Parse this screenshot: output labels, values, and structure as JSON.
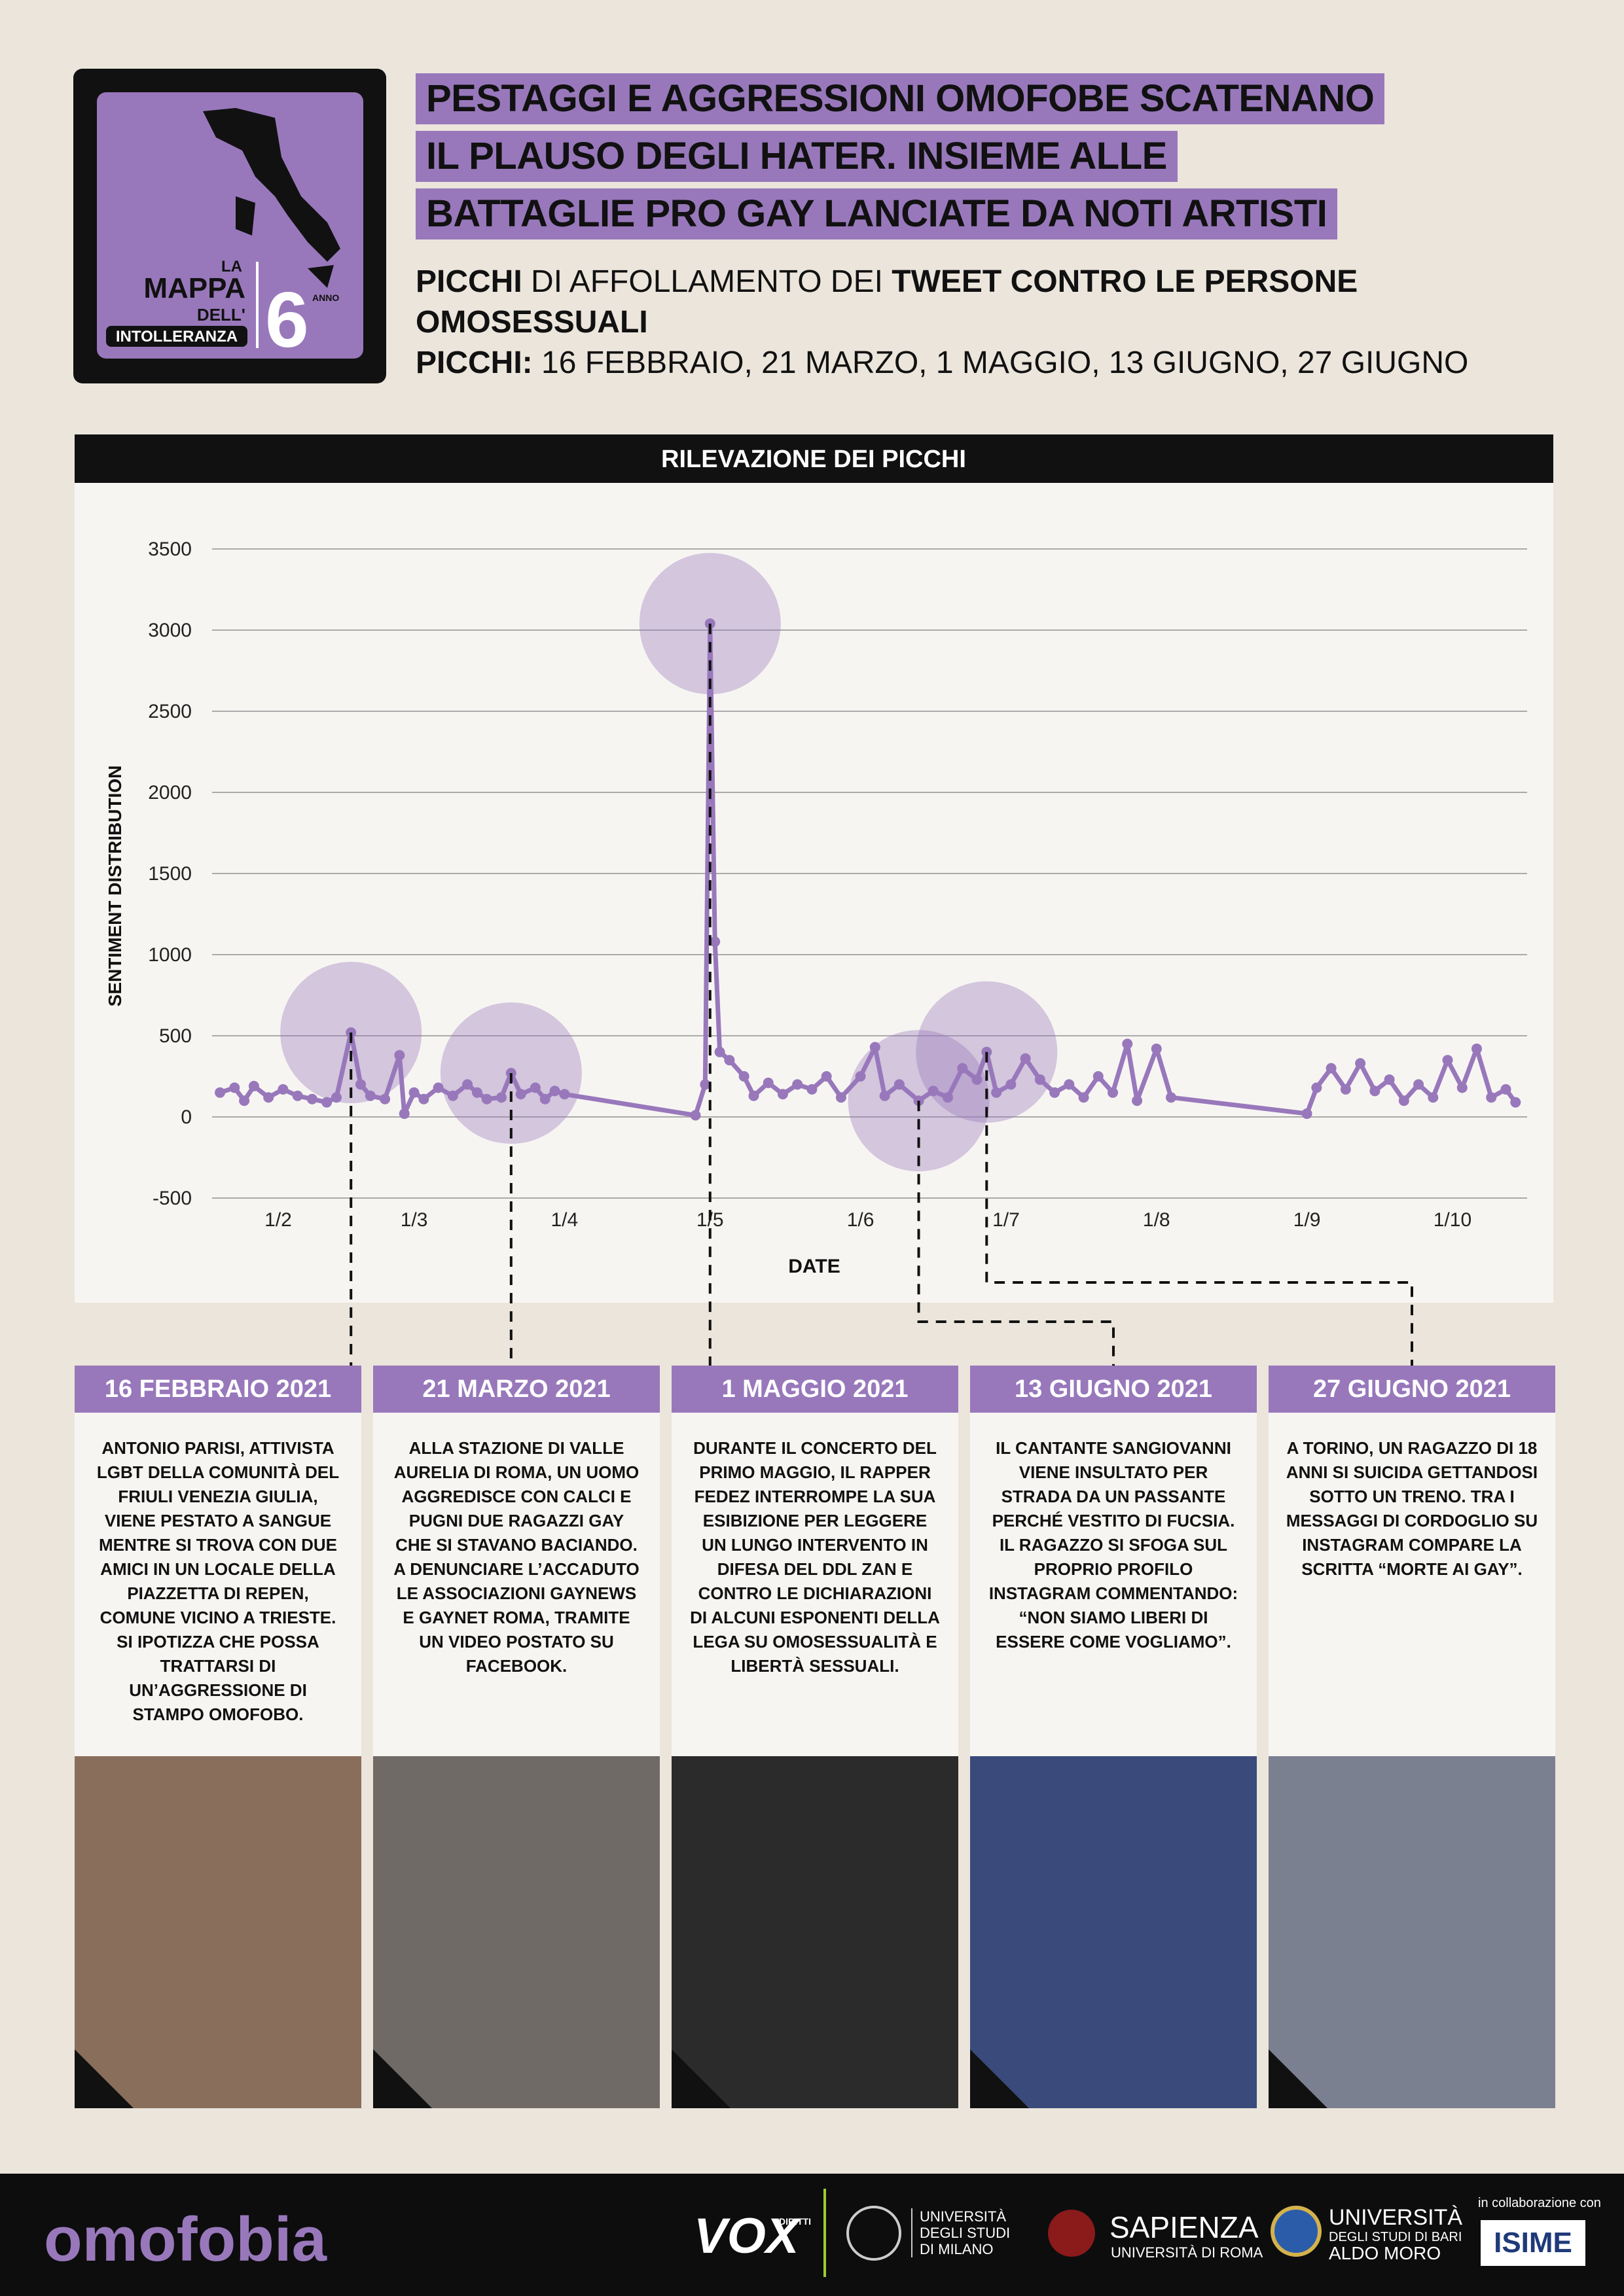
{
  "header": {
    "logo": {
      "line1": "LA",
      "line2": "MAPPA",
      "line3": "DELL'",
      "line4": "INTOLLERANZA",
      "edition": "6",
      "edition_label": "ANNO"
    },
    "title_lines": [
      "PESTAGGI E AGGRESSIONI OMOFOBE SCATENANO",
      "IL PLAUSO DEGLI HATER. INSIEME ALLE",
      "BATTAGLIE PRO GAY LANCIATE DA NOTI ARTISTI"
    ],
    "subtitle": [
      [
        {
          "text": "PICCHI",
          "bold": true
        },
        {
          "text": "DI AFFOLLAMENTO DEI",
          "bold": false
        },
        {
          "text": "TWEET CONTRO LE PERSONE OMOSESSUALI",
          "bold": true
        }
      ],
      [
        {
          "text": "PICCHI:",
          "bold": true
        },
        {
          "text": "16 FEBBRAIO, 21 MARZO, 1 MAGGIO, 13 GIUGNO, 27 GIUGNO",
          "bold": false
        }
      ]
    ]
  },
  "chart_data": {
    "type": "line",
    "title": "RILEVAZIONE DEI PICCHI",
    "xlabel": "DATE",
    "ylabel": "SENTIMENT DISTRIBUTION",
    "grid": true,
    "color": "#9878bb",
    "x": [
      "20/1",
      "23/1",
      "25/1",
      "27/1",
      "30/1",
      "2/2",
      "5/2",
      "8/2",
      "11/2",
      "13/2",
      "16/2",
      "18/2",
      "20/2",
      "23/2",
      "26/2",
      "27/2",
      "1/3",
      "3/3",
      "6/3",
      "9/3",
      "12/3",
      "14/3",
      "16/3",
      "19/3",
      "21/3",
      "23/3",
      "26/3",
      "28/3",
      "30/3",
      "1/4",
      "28/4",
      "30/4",
      "1/5",
      "2/5",
      "3/5",
      "5/5",
      "8/5",
      "10/5",
      "13/5",
      "16/5",
      "19/5",
      "22/5",
      "25/5",
      "28/5",
      "1/6",
      "4/6",
      "6/6",
      "9/6",
      "13/6",
      "16/6",
      "19/6",
      "22/6",
      "25/6",
      "27/6",
      "29/6",
      "2/7",
      "5/7",
      "8/7",
      "11/7",
      "14/7",
      "17/7",
      "20/7",
      "23/7",
      "26/7",
      "28/7",
      "1/8",
      "4/8",
      "1/9",
      "3/9",
      "6/9",
      "9/9",
      "12/9",
      "15/9",
      "18/9",
      "21/9",
      "24/9",
      "27/9",
      "30/9",
      "3/10",
      "6/10",
      "9/10",
      "12/10",
      "14/10"
    ],
    "series": [
      {
        "name": "SENTIMENT DISTRIBUTION",
        "color": "#9878bb",
        "values": [
          150,
          180,
          100,
          190,
          120,
          170,
          130,
          110,
          90,
          120,
          520,
          200,
          130,
          110,
          380,
          20,
          150,
          110,
          180,
          130,
          200,
          150,
          110,
          120,
          270,
          140,
          180,
          110,
          160,
          140,
          10,
          200,
          3040,
          1080,
          400,
          350,
          250,
          130,
          210,
          140,
          200,
          170,
          250,
          120,
          250,
          430,
          130,
          200,
          100,
          160,
          120,
          300,
          230,
          400,
          150,
          200,
          360,
          230,
          150,
          200,
          120,
          250,
          150,
          450,
          100,
          420,
          120,
          20,
          180,
          300,
          170,
          330,
          160,
          230,
          100,
          200,
          120,
          350,
          180,
          420,
          120,
          170,
          90
        ]
      }
    ],
    "highlight_x": [
      "16/2",
      "21/3",
      "1/5",
      "13/6",
      "27/6"
    ],
    "ylim": [
      -500,
      3500
    ],
    "yticks": [
      -500,
      0,
      500,
      1000,
      1500,
      2000,
      2500,
      3000,
      3500
    ],
    "xticks": [
      "1/2",
      "1/3",
      "1/4",
      "1/5",
      "1/6",
      "1/7",
      "1/8",
      "1/9",
      "1/10"
    ]
  },
  "events": [
    {
      "date": "16 FEBBRAIO 2021",
      "text": "ANTONIO PARISI, ATTIVISTA LGBT DELLA COMUNITÀ DEL FRIULI VENEZIA GIULIA, VIENE PESTATO A SANGUE MENTRE SI TROVA CON DUE AMICI IN UN LOCALE DELLA PIAZZETTA DI REPEN, COMUNE VICINO A TRIESTE. SI IPOTIZZA CHE POSSA TRATTARSI DI UN’AGGRESSIONE DI STAMPO OMOFOBO."
    },
    {
      "date": "21 MARZO 2021",
      "text": "ALLA STAZIONE DI VALLE AURELIA DI ROMA, UN UOMO AGGREDISCE CON CALCI E PUGNI DUE RAGAZZI GAY CHE SI STAVANO BACIANDO. A DENUNCIARE L’ACCADUTO LE ASSOCIAZIONI GAYNEWS E GAYNET ROMA, TRAMITE UN VIDEO POSTATO SU FACEBOOK."
    },
    {
      "date": "1 MAGGIO 2021",
      "text": "DURANTE IL CONCERTO DEL PRIMO MAGGIO, IL RAPPER FEDEZ INTERROMPE LA SUA ESIBIZIONE PER LEGGERE UN LUNGO INTERVENTO IN DIFESA DEL DDL ZAN E CONTRO LE DICHIARAZIONI DI ALCUNI ESPONENTI DELLA LEGA SU OMOSESSUALITÀ E LIBERTÀ SESSUALI."
    },
    {
      "date": "13 GIUGNO 2021",
      "text": "IL CANTANTE SANGIOVANNI VIENE INSULTATO PER STRADA DA UN PASSANTE PERCHÉ VESTITO DI FUCSIA. IL RAGAZZO SI SFOGA SUL PROPRIO PROFILO INSTAGRAM COMMENTANDO: “NON SIAMO LIBERI DI ESSERE COME VOGLIAMO”."
    },
    {
      "date": "27 GIUGNO 2021",
      "text": "A TORINO, UN RAGAZZO DI 18 ANNI SI SUICIDA GETTANDOSI SOTTO UN TRENO. TRA I MESSAGGI DI CORDOGLIO SU INSTAGRAM COMPARE LA SCRITTA “MORTE AI GAY”."
    }
  ],
  "footer": {
    "brand": "omofobia",
    "vox": "VOX",
    "vox_sub": "DIRITTI",
    "unimi": [
      "UNIVERSITÀ",
      "DEGLI STUDI",
      "DI MILANO"
    ],
    "sapienza": "SAPIENZA",
    "sapienza_sub": "UNIVERSITÀ DI ROMA",
    "uniba": [
      "UNIVERSITÀ",
      "DEGLI STUDI DI BARI",
      "ALDO MORO"
    ],
    "collab": "in collaborazione con",
    "isime": "ISIME"
  }
}
